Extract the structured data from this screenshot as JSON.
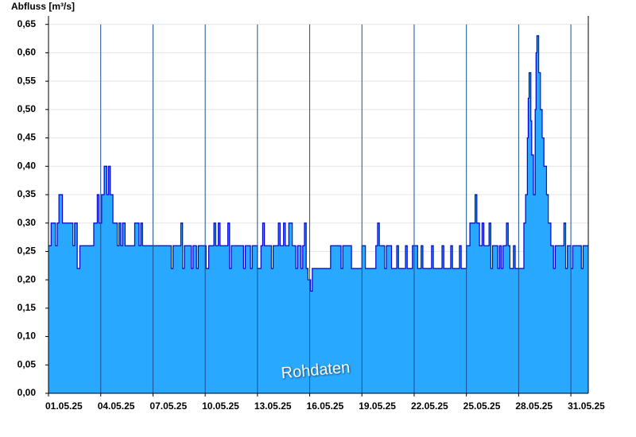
{
  "chart_data": {
    "type": "step-area",
    "y_label": "Abfluss [m³/s]",
    "annotation": "Rohdaten",
    "color": "#29a8ff",
    "line_color": "#0000cc",
    "grid": true,
    "xlim": [
      0,
      31
    ],
    "ylim": [
      0,
      0.665
    ],
    "xticks": [
      {
        "value": 0,
        "label": "01.05.25"
      },
      {
        "value": 3,
        "label": "04.05.25"
      },
      {
        "value": 6,
        "label": "07.05.25"
      },
      {
        "value": 9,
        "label": "10.05.25"
      },
      {
        "value": 12,
        "label": "13.05.25"
      },
      {
        "value": 15,
        "label": "16.05.25"
      },
      {
        "value": 18,
        "label": "19.05.25"
      },
      {
        "value": 21,
        "label": "22.05.25"
      },
      {
        "value": 24,
        "label": "25.05.25"
      },
      {
        "value": 27,
        "label": "28.05.25"
      },
      {
        "value": 30,
        "label": "31.05.25"
      }
    ],
    "yticks": [
      {
        "value": 0,
        "label": "0,00"
      },
      {
        "value": 0.05,
        "label": "0,05"
      },
      {
        "value": 0.1,
        "label": "0,10"
      },
      {
        "value": 0.15,
        "label": "0,15"
      },
      {
        "value": 0.2,
        "label": "0,20"
      },
      {
        "value": 0.25,
        "label": "0,25"
      },
      {
        "value": 0.3,
        "label": "0,30"
      },
      {
        "value": 0.35,
        "label": "0,35"
      },
      {
        "value": 0.4,
        "label": "0,40"
      },
      {
        "value": 0.45,
        "label": "0,45"
      },
      {
        "value": 0.5,
        "label": "0,50"
      },
      {
        "value": 0.55,
        "label": "0,55"
      },
      {
        "value": 0.6,
        "label": "0,60"
      },
      {
        "value": 0.65,
        "label": "0,65"
      }
    ],
    "x": [
      0,
      0.15,
      0.4,
      0.5,
      0.6,
      0.8,
      1.4,
      1.5,
      1.65,
      1.8,
      2.6,
      2.8,
      2.9,
      3.05,
      3.2,
      3.35,
      3.45,
      3.55,
      3.7,
      3.95,
      4.05,
      4.15,
      4.25,
      4.4,
      4.95,
      5.2,
      5.3,
      5.4,
      7.05,
      7.15,
      7.6,
      7.7,
      7.8,
      8.2,
      8.3,
      8.5,
      8.6,
      9.05,
      9.2,
      9.5,
      9.6,
      9.75,
      9.85,
      10.3,
      10.4,
      10.5,
      11.2,
      11.3,
      11.6,
      11.7,
      12.0,
      12.2,
      12.3,
      12.4,
      12.8,
      12.9,
      13.2,
      13.3,
      13.5,
      13.6,
      13.8,
      14.0,
      14.2,
      14.3,
      14.5,
      14.6,
      14.7,
      14.8,
      14.9,
      15.05,
      15.15,
      16.2,
      16.8,
      16.9,
      17.4,
      18.0,
      18.2,
      18.8,
      18.9,
      19.0,
      19.3,
      19.4,
      19.7,
      20.0,
      20.1,
      20.5,
      20.6,
      20.9,
      21.2,
      21.4,
      21.5,
      22.0,
      22.1,
      22.6,
      22.7,
      23.1,
      23.2,
      23.6,
      23.7,
      24.0,
      24.2,
      24.5,
      24.6,
      24.75,
      24.9,
      25.0,
      25.3,
      25.4,
      25.5,
      25.8,
      25.9,
      26.0,
      26.1,
      26.3,
      26.4,
      26.5,
      26.7,
      26.8,
      27.3,
      27.4,
      27.5,
      27.55,
      27.6,
      27.7,
      27.75,
      27.85,
      27.95,
      28.0,
      28.05,
      28.15,
      28.25,
      28.35,
      28.45,
      28.6,
      28.7,
      28.85,
      29.0,
      29.1,
      29.6,
      29.7,
      29.8,
      30.0,
      30.1,
      30.6,
      30.7
    ],
    "values": [
      0.26,
      0.3,
      0.26,
      0.3,
      0.35,
      0.3,
      0.26,
      0.3,
      0.22,
      0.26,
      0.3,
      0.35,
      0.3,
      0.35,
      0.4,
      0.35,
      0.4,
      0.35,
      0.3,
      0.26,
      0.3,
      0.26,
      0.3,
      0.26,
      0.3,
      0.26,
      0.3,
      0.26,
      0.22,
      0.26,
      0.3,
      0.22,
      0.26,
      0.22,
      0.26,
      0.22,
      0.26,
      0.22,
      0.26,
      0.3,
      0.26,
      0.3,
      0.26,
      0.3,
      0.22,
      0.26,
      0.22,
      0.26,
      0.22,
      0.26,
      0.22,
      0.26,
      0.3,
      0.26,
      0.22,
      0.26,
      0.3,
      0.26,
      0.3,
      0.26,
      0.3,
      0.26,
      0.22,
      0.26,
      0.22,
      0.26,
      0.3,
      0.22,
      0.2,
      0.18,
      0.22,
      0.26,
      0.22,
      0.26,
      0.22,
      0.26,
      0.22,
      0.26,
      0.3,
      0.26,
      0.22,
      0.26,
      0.22,
      0.26,
      0.22,
      0.26,
      0.22,
      0.26,
      0.22,
      0.26,
      0.22,
      0.26,
      0.22,
      0.26,
      0.22,
      0.26,
      0.22,
      0.26,
      0.22,
      0.26,
      0.3,
      0.35,
      0.3,
      0.26,
      0.3,
      0.26,
      0.3,
      0.22,
      0.26,
      0.22,
      0.26,
      0.22,
      0.26,
      0.3,
      0.26,
      0.22,
      0.26,
      0.22,
      0.3,
      0.35,
      0.45,
      0.52,
      0.565,
      0.48,
      0.42,
      0.35,
      0.5,
      0.6,
      0.63,
      0.565,
      0.5,
      0.45,
      0.4,
      0.35,
      0.3,
      0.26,
      0.22,
      0.26,
      0.3,
      0.22,
      0.26,
      0.22,
      0.26,
      0.22,
      0.26
    ]
  }
}
